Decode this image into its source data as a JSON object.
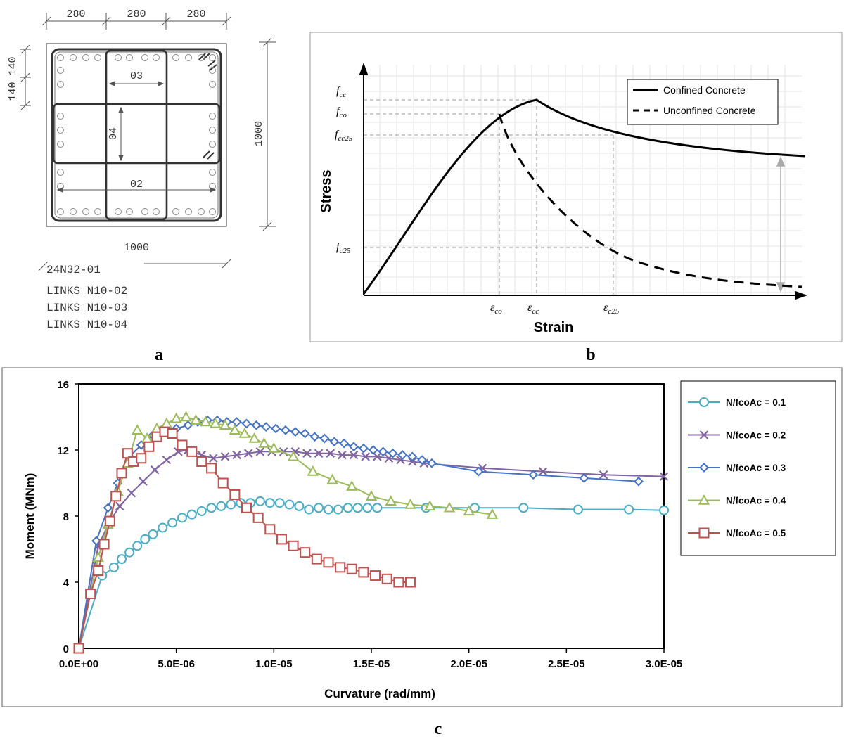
{
  "panel_a": {
    "letter": "a",
    "dims_top": [
      "280",
      "280",
      "280"
    ],
    "dims_left": "140 140",
    "dim_right": "1000",
    "dim_bottom": "1000",
    "link_labels": [
      "03",
      "04",
      "02"
    ],
    "notes": [
      "24N32-01",
      "LINKS N10-02",
      "LINKS N10-03",
      "LINKS N10-04"
    ]
  },
  "panel_b": {
    "letter": "b",
    "chart_data": {
      "type": "line",
      "title": "",
      "xlabel": "Strain",
      "ylabel": "Stress",
      "grid": true,
      "legend_position": "top-right",
      "y_marks": [
        {
          "sym": "f",
          "sub": "cc"
        },
        {
          "sym": "f",
          "sub": "co"
        },
        {
          "sym": "f",
          "sub": "cc25"
        },
        {
          "sym": "f",
          "sub": "c25"
        }
      ],
      "x_marks": [
        {
          "sym": "ε",
          "sub": "co"
        },
        {
          "sym": "ε",
          "sub": "cc"
        },
        {
          "sym": "ε",
          "sub": "c25"
        }
      ],
      "series": [
        {
          "name": "Confined Concrete",
          "style": "solid",
          "color": "#000000"
        },
        {
          "name": "Unconfined Concrete",
          "style": "dashed",
          "color": "#000000"
        }
      ]
    }
  },
  "panel_c": {
    "letter": "c",
    "chart_data": {
      "type": "line",
      "title": "",
      "xlabel": "Curvature (rad/mm)",
      "ylabel": "Moment (MNm)",
      "xlim": [
        0,
        3e-05
      ],
      "ylim": [
        0,
        16
      ],
      "x_ticks": [
        "0.0E+00",
        "5.0E-06",
        "1.0E-05",
        "1.5E-05",
        "2.0E-05",
        "2.5E-05",
        "3.0E-05"
      ],
      "y_ticks": [
        "0",
        "4",
        "8",
        "12",
        "16"
      ],
      "grid": false,
      "legend_position": "right",
      "series": [
        {
          "name": "N/fcoAc = 0.1",
          "marker": "circle",
          "color": "#4bacc6",
          "x": [
            0,
            1.2e-06,
            1.8e-06,
            2.2e-06,
            2.6e-06,
            3e-06,
            3.4e-06,
            3.8e-06,
            4.3e-06,
            4.8e-06,
            5.3e-06,
            5.8e-06,
            6.3e-06,
            6.8e-06,
            7.3e-06,
            7.8e-06,
            8.3e-06,
            8.8e-06,
            9.3e-06,
            9.8e-06,
            1.03e-05,
            1.08e-05,
            1.13e-05,
            1.18e-05,
            1.23e-05,
            1.28e-05,
            1.33e-05,
            1.38e-05,
            1.43e-05,
            1.48e-05,
            1.53e-05,
            1.78e-05,
            2.03e-05,
            2.28e-05,
            2.56e-05,
            2.82e-05,
            3e-05
          ],
          "y": [
            0,
            4.4,
            4.9,
            5.4,
            5.8,
            6.2,
            6.6,
            6.9,
            7.3,
            7.6,
            7.9,
            8.1,
            8.3,
            8.5,
            8.6,
            8.7,
            8.8,
            8.8,
            8.9,
            8.8,
            8.8,
            8.7,
            8.6,
            8.4,
            8.5,
            8.4,
            8.4,
            8.5,
            8.5,
            8.5,
            8.5,
            8.5,
            8.5,
            8.5,
            8.4,
            8.4,
            8.35
          ]
        },
        {
          "name": "N/fcoAc = 0.2",
          "marker": "x",
          "color": "#8064a2",
          "x": [
            0,
            1e-06,
            1.6e-06,
            2.1e-06,
            2.7e-06,
            3.3e-06,
            3.9e-06,
            4.5e-06,
            5.1e-06,
            5.6e-06,
            6.3e-06,
            6.9e-06,
            7.5e-06,
            8.1e-06,
            8.7e-06,
            9.3e-06,
            9.9e-06,
            1.05e-05,
            1.11e-05,
            1.17e-05,
            1.23e-05,
            1.29e-05,
            1.35e-05,
            1.41e-05,
            1.47e-05,
            1.53e-05,
            1.59e-05,
            1.65e-05,
            1.71e-05,
            1.77e-05,
            2.07e-05,
            2.38e-05,
            2.69e-05,
            3e-05
          ],
          "y": [
            0,
            6.2,
            7.7,
            8.6,
            9.4,
            10.1,
            10.8,
            11.4,
            11.9,
            12.0,
            11.7,
            11.5,
            11.6,
            11.7,
            11.8,
            11.9,
            11.9,
            11.9,
            11.9,
            11.8,
            11.8,
            11.8,
            11.7,
            11.7,
            11.6,
            11.6,
            11.5,
            11.4,
            11.3,
            11.2,
            10.9,
            10.7,
            10.5,
            10.4
          ]
        },
        {
          "name": "N/fcoAc = 0.3",
          "marker": "diamond",
          "color": "#4472c4",
          "x": [
            0,
            9e-07,
            1.5e-06,
            2e-06,
            2.6e-06,
            3.2e-06,
            3.8e-06,
            4.4e-06,
            5e-06,
            5.6e-06,
            6.1e-06,
            6.6e-06,
            7.1e-06,
            7.6e-06,
            8.1e-06,
            8.6e-06,
            9.1e-06,
            9.6e-06,
            1.01e-05,
            1.06e-05,
            1.11e-05,
            1.16e-05,
            1.21e-05,
            1.26e-05,
            1.31e-05,
            1.36e-05,
            1.41e-05,
            1.46e-05,
            1.51e-05,
            1.56e-05,
            1.61e-05,
            1.66e-05,
            1.71e-05,
            1.76e-05,
            1.81e-05,
            2.05e-05,
            2.33e-05,
            2.59e-05,
            2.87e-05
          ],
          "y": [
            0,
            6.5,
            8.5,
            10.0,
            11.6,
            12.3,
            12.9,
            13.2,
            13.3,
            13.5,
            13.7,
            13.8,
            13.8,
            13.7,
            13.7,
            13.6,
            13.5,
            13.4,
            13.3,
            13.2,
            13.1,
            13.0,
            12.8,
            12.7,
            12.5,
            12.4,
            12.2,
            12.1,
            12.0,
            11.9,
            11.8,
            11.7,
            11.6,
            11.4,
            11.2,
            10.7,
            10.5,
            10.3,
            10.1
          ]
        },
        {
          "name": "N/fcoAc = 0.4",
          "marker": "triangle",
          "color": "#9bbb59",
          "x": [
            0,
            1e-06,
            1.5e-06,
            2e-06,
            2.5e-06,
            3e-06,
            3.5e-06,
            4e-06,
            4.5e-06,
            5e-06,
            5.5e-06,
            6e-06,
            6.5e-06,
            7e-06,
            7.5e-06,
            8e-06,
            8.5e-06,
            9e-06,
            9.5e-06,
            1e-05,
            1.1e-05,
            1.2e-05,
            1.3e-05,
            1.4e-05,
            1.5e-05,
            1.6e-05,
            1.7e-05,
            1.8e-05,
            1.9e-05,
            2e-05,
            2.12e-05
          ],
          "y": [
            0,
            5.5,
            7.5,
            9.5,
            11.2,
            13.2,
            12.7,
            13.3,
            13.6,
            13.9,
            14.0,
            13.8,
            13.7,
            13.6,
            13.5,
            13.2,
            13.0,
            12.7,
            12.4,
            12.1,
            11.6,
            10.7,
            10.2,
            9.8,
            9.2,
            8.9,
            8.7,
            8.6,
            8.5,
            8.3,
            8.1
          ]
        },
        {
          "name": "N/fcoAc = 0.5",
          "marker": "square",
          "color": "#c0504d",
          "x": [
            0,
            6e-07,
            1e-06,
            1.3e-06,
            1.6e-06,
            1.9e-06,
            2.2e-06,
            2.5e-06,
            2.8e-06,
            3.2e-06,
            3.6e-06,
            4e-06,
            4.4e-06,
            4.8e-06,
            5.3e-06,
            5.8e-06,
            6.3e-06,
            6.8e-06,
            7.4e-06,
            8e-06,
            8.6e-06,
            9.2e-06,
            9.8e-06,
            1.04e-05,
            1.1e-05,
            1.16e-05,
            1.22e-05,
            1.28e-05,
            1.34e-05,
            1.4e-05,
            1.46e-05,
            1.52e-05,
            1.58e-05,
            1.64e-05,
            1.7e-05
          ],
          "y": [
            0,
            3.3,
            4.7,
            6.3,
            7.7,
            9.2,
            10.6,
            11.8,
            11.3,
            11.5,
            12.2,
            12.8,
            13.1,
            13.0,
            12.3,
            11.9,
            11.3,
            10.9,
            10.0,
            9.3,
            8.5,
            7.9,
            7.2,
            6.6,
            6.2,
            5.8,
            5.4,
            5.2,
            4.9,
            4.8,
            4.6,
            4.4,
            4.2,
            4.0,
            4.0
          ]
        }
      ]
    }
  }
}
